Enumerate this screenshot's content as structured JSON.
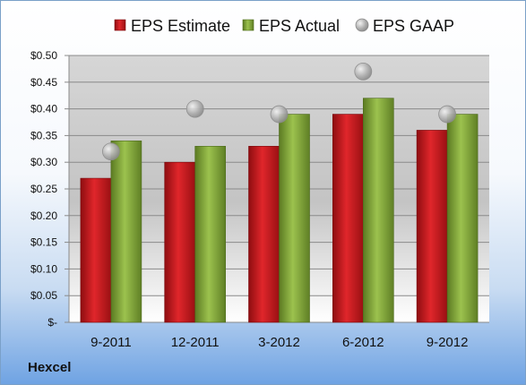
{
  "company": "Hexcel",
  "chart_data": {
    "type": "bar",
    "title": "",
    "xlabel": "",
    "ylabel": "",
    "categories": [
      "9-2011",
      "12-2011",
      "3-2012",
      "6-2012",
      "9-2012"
    ],
    "series": [
      {
        "name": "EPS Estimate",
        "values": [
          0.27,
          0.3,
          0.33,
          0.39,
          0.36
        ],
        "color": "#c8161d",
        "mark": "bar"
      },
      {
        "name": "EPS Actual",
        "values": [
          0.34,
          0.33,
          0.39,
          0.42,
          0.39
        ],
        "color": "#7fa33a",
        "mark": "bar"
      },
      {
        "name": "EPS GAAP",
        "values": [
          0.32,
          0.4,
          0.39,
          0.47,
          0.39
        ],
        "color": "#a9a9a9",
        "mark": "bubble"
      }
    ],
    "ylim": [
      0,
      0.5
    ],
    "y_ticks": [
      {
        "value": 0.0,
        "label": "$-"
      },
      {
        "value": 0.05,
        "label": "$0.05"
      },
      {
        "value": 0.1,
        "label": "$0.10"
      },
      {
        "value": 0.15,
        "label": "$0.15"
      },
      {
        "value": 0.2,
        "label": "$0.20"
      },
      {
        "value": 0.25,
        "label": "$0.25"
      },
      {
        "value": 0.3,
        "label": "$0.30"
      },
      {
        "value": 0.35,
        "label": "$0.35"
      },
      {
        "value": 0.4,
        "label": "$0.40"
      },
      {
        "value": 0.45,
        "label": "$0.45"
      },
      {
        "value": 0.5,
        "label": "$0.50"
      }
    ],
    "grid": true,
    "legend_position": "top"
  }
}
